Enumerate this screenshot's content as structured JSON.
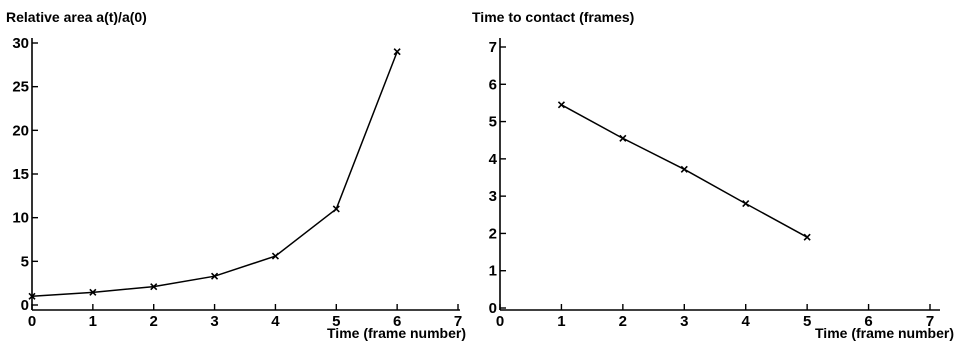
{
  "chart_data": [
    {
      "type": "line",
      "title": "",
      "ylabel": "Relative area a(t)/a(0)",
      "xlabel": "Time (frame number)",
      "xlim": [
        0,
        7
      ],
      "ylim": [
        0,
        30
      ],
      "xticks": [
        "0",
        "1",
        "2",
        "3",
        "4",
        "5",
        "6",
        "7"
      ],
      "yticks": [
        "0",
        "5",
        "10",
        "15",
        "20",
        "25",
        "30"
      ],
      "grid": false,
      "series": [
        {
          "x": [
            0,
            1,
            2,
            3,
            4,
            5,
            6
          ],
          "values": [
            1.0,
            1.45,
            2.1,
            3.3,
            5.6,
            11.0,
            29.0
          ]
        }
      ]
    },
    {
      "type": "line",
      "title": "",
      "ylabel": "Time to contact (frames)",
      "xlabel": "Time (frame number)",
      "xlim": [
        0,
        7
      ],
      "ylim": [
        0,
        7
      ],
      "xticks": [
        "0",
        "1",
        "2",
        "3",
        "4",
        "5",
        "6",
        "7"
      ],
      "yticks": [
        "0",
        "1",
        "2",
        "3",
        "4",
        "5",
        "6",
        "7"
      ],
      "grid": false,
      "series": [
        {
          "x": [
            1,
            2,
            3,
            4,
            5
          ],
          "values": [
            5.45,
            4.55,
            3.72,
            2.8,
            1.9
          ]
        }
      ]
    }
  ]
}
